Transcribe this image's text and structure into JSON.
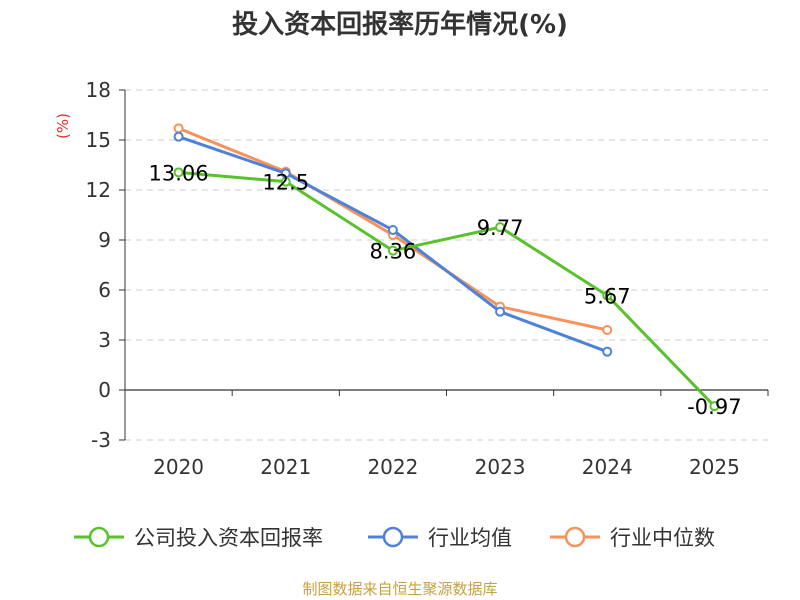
{
  "chart_data": {
    "type": "line",
    "title": "投入资本回报率历年情况(%)",
    "ylabel": "(%)",
    "xlabel": "",
    "categories": [
      "2020",
      "2021",
      "2022",
      "2023",
      "2024",
      "2025"
    ],
    "y_ticks": [
      "18",
      "15",
      "12",
      "9",
      "6",
      "3",
      "0",
      "-3"
    ],
    "ylim": [
      -3,
      18
    ],
    "grid": true,
    "legend_position": "bottom",
    "series": [
      {
        "name": "公司投入资本回报率",
        "color": "#58c22b",
        "values": [
          13.06,
          12.5,
          8.36,
          9.77,
          5.67,
          -0.97
        ],
        "labels": [
          "13.06",
          "12.5",
          "8.36",
          "9.77",
          "5.67",
          "-0.97"
        ]
      },
      {
        "name": "行业均值",
        "color": "#4f81d9",
        "values": [
          15.2,
          13.0,
          9.6,
          4.7,
          2.3,
          null
        ]
      },
      {
        "name": "行业中位数",
        "color": "#f7925a",
        "values": [
          15.7,
          13.1,
          9.3,
          5.0,
          3.6,
          null
        ]
      }
    ]
  },
  "footer": {
    "source": "制图数据来自恒生聚源数据库"
  }
}
